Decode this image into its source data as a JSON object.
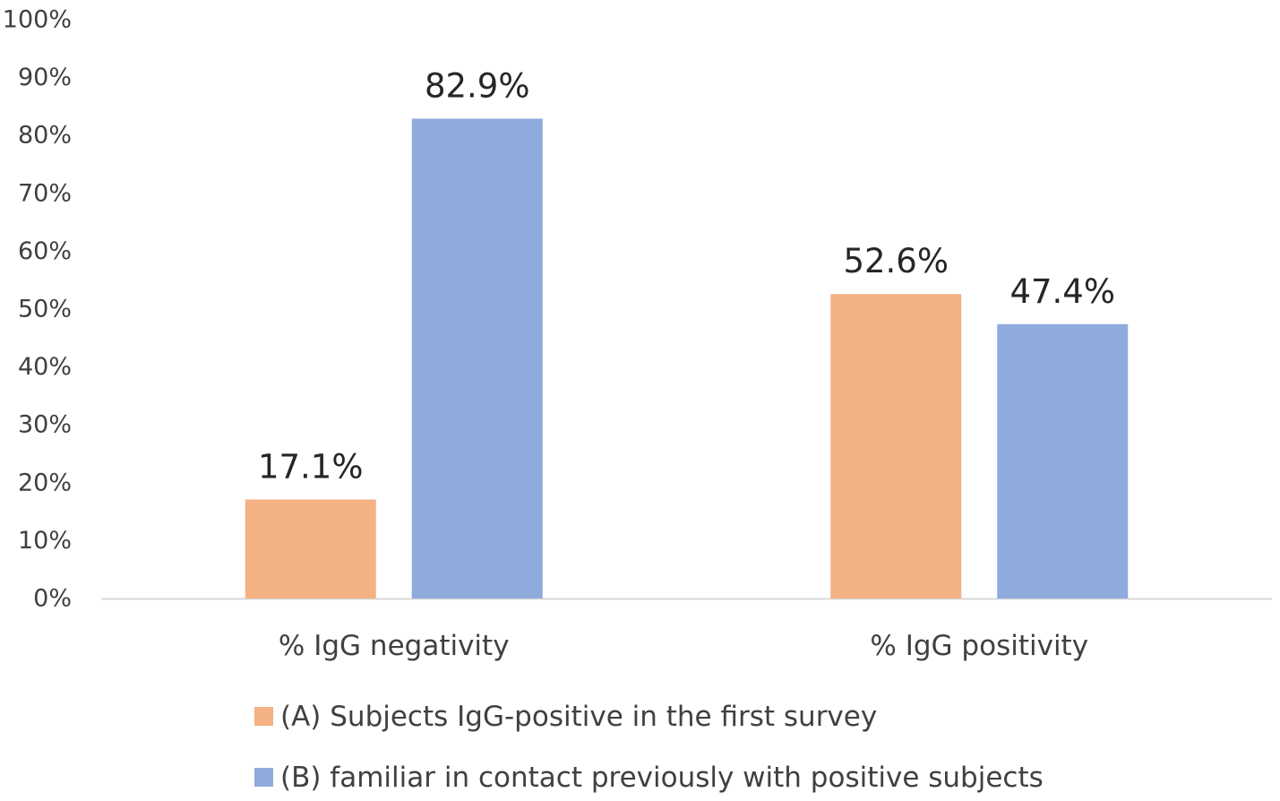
{
  "chart_data": {
    "type": "bar",
    "title": "",
    "xlabel": "",
    "ylabel": "",
    "categories": [
      "% IgG negativity",
      "% IgG positivity"
    ],
    "series": [
      {
        "name": "(A) Subjects IgG-positive in the first survey",
        "color": "#F4B183",
        "values": [
          17.1,
          52.6
        ],
        "labels": [
          "17.1%",
          "52.6%"
        ]
      },
      {
        "name": "(B) familiar in contact previously with positive subjects",
        "color": "#8FAADC",
        "values": [
          82.9,
          47.4
        ],
        "labels": [
          "82.9%",
          "47.4%"
        ]
      }
    ],
    "ylim": [
      0,
      100
    ],
    "yticks": [
      0,
      10,
      20,
      30,
      40,
      50,
      60,
      70,
      80,
      90,
      100
    ],
    "ytick_labels": [
      "0%",
      "10%",
      "20%",
      "30%",
      "40%",
      "50%",
      "60%",
      "70%",
      "80%",
      "90%",
      "100%"
    ],
    "grid": false,
    "legend_position": "bottom"
  }
}
